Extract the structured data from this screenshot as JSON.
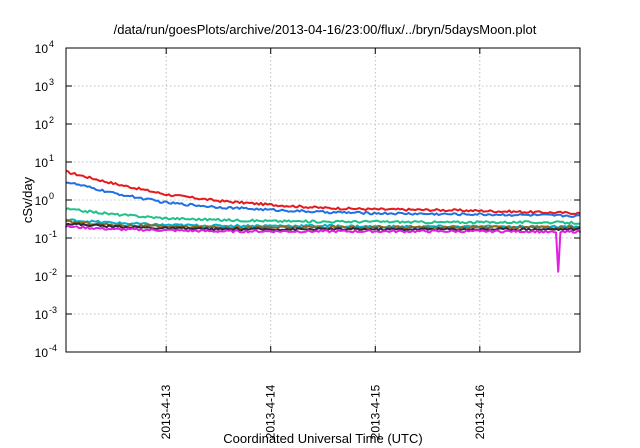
{
  "chart_data": {
    "type": "line",
    "title": "/data/run/goesPlots/archive/2013-04-16/23:00/flux/../bryn/5daysMoon.plot",
    "xlabel": "Coordinated Universal Time (UTC)",
    "ylabel": "cSv/day",
    "y_scale": "log",
    "ylim": [
      0.0001,
      10000
    ],
    "y_ticks": [
      {
        "value": 0.0001,
        "base": "10",
        "exp": "-4"
      },
      {
        "value": 0.001,
        "base": "10",
        "exp": "-3"
      },
      {
        "value": 0.01,
        "base": "10",
        "exp": "-2"
      },
      {
        "value": 0.1,
        "base": "10",
        "exp": "-1"
      },
      {
        "value": 1,
        "base": "10",
        "exp": "0"
      },
      {
        "value": 10,
        "base": "10",
        "exp": "1"
      },
      {
        "value": 100,
        "base": "10",
        "exp": "2"
      },
      {
        "value": 1000,
        "base": "10",
        "exp": "3"
      },
      {
        "value": 10000,
        "base": "10",
        "exp": "4"
      }
    ],
    "x_type": "date",
    "xlim": [
      "2013-04-12T01:00",
      "2013-04-16T23:00"
    ],
    "x_ticks": [
      "2013-4-13",
      "2013-4-14",
      "2013-4-15",
      "2013-4-16"
    ],
    "grid": true,
    "legend": "none",
    "series": [
      {
        "color": "#e41a1c",
        "x": [
          "2013-04-12T01:00",
          "2013-04-12T12:00",
          "2013-04-13T00:00",
          "2013-04-13T12:00",
          "2013-04-14T00:00",
          "2013-04-14T12:00",
          "2013-04-15T00:00",
          "2013-04-15T12:00",
          "2013-04-16T00:00",
          "2013-04-16T12:00",
          "2013-04-16T23:00"
        ],
        "values": [
          5.5,
          2.7,
          1.4,
          0.95,
          0.75,
          0.62,
          0.57,
          0.55,
          0.52,
          0.48,
          0.45
        ]
      },
      {
        "color": "#1f6fe5",
        "x": [
          "2013-04-12T01:00",
          "2013-04-12T12:00",
          "2013-04-13T00:00",
          "2013-04-13T12:00",
          "2013-04-14T00:00",
          "2013-04-14T12:00",
          "2013-04-15T00:00",
          "2013-04-15T12:00",
          "2013-04-16T00:00",
          "2013-04-16T12:00",
          "2013-04-16T23:00"
        ],
        "values": [
          3.0,
          1.5,
          0.85,
          0.65,
          0.55,
          0.48,
          0.45,
          0.43,
          0.42,
          0.4,
          0.38
        ]
      },
      {
        "color": "#1fc08a",
        "x": [
          "2013-04-12T01:00",
          "2013-04-12T12:00",
          "2013-04-13T00:00",
          "2013-04-13T12:00",
          "2013-04-14T00:00",
          "2013-04-14T12:00",
          "2013-04-15T00:00",
          "2013-04-15T12:00",
          "2013-04-16T00:00",
          "2013-04-16T12:00",
          "2013-04-16T23:00"
        ],
        "values": [
          0.58,
          0.42,
          0.33,
          0.3,
          0.28,
          0.27,
          0.27,
          0.26,
          0.26,
          0.26,
          0.25
        ]
      },
      {
        "color": "#00b0d0",
        "x": [
          "2013-04-12T01:00",
          "2013-04-12T12:00",
          "2013-04-13T00:00",
          "2013-04-13T12:00",
          "2013-04-14T00:00",
          "2013-04-14T12:00",
          "2013-04-15T00:00",
          "2013-04-15T12:00",
          "2013-04-16T00:00",
          "2013-04-16T12:00",
          "2013-04-16T23:00"
        ],
        "values": [
          0.3,
          0.25,
          0.22,
          0.21,
          0.21,
          0.21,
          0.2,
          0.2,
          0.2,
          0.2,
          0.2
        ]
      },
      {
        "color": "#8a6a1a",
        "x": [
          "2013-04-12T01:00",
          "2013-04-12T12:00",
          "2013-04-13T00:00",
          "2013-04-13T12:00",
          "2013-04-14T00:00",
          "2013-04-14T12:00",
          "2013-04-15T00:00",
          "2013-04-15T12:00",
          "2013-04-16T00:00",
          "2013-04-16T12:00",
          "2013-04-16T23:00"
        ],
        "values": [
          0.27,
          0.22,
          0.2,
          0.19,
          0.19,
          0.19,
          0.19,
          0.19,
          0.19,
          0.19,
          0.19
        ]
      },
      {
        "color": "#2a2a3a",
        "x": [
          "2013-04-12T01:00",
          "2013-04-12T12:00",
          "2013-04-13T00:00",
          "2013-04-13T12:00",
          "2013-04-14T00:00",
          "2013-04-14T12:00",
          "2013-04-15T00:00",
          "2013-04-15T12:00",
          "2013-04-16T00:00",
          "2013-04-16T12:00",
          "2013-04-16T23:00"
        ],
        "values": [
          0.24,
          0.2,
          0.18,
          0.17,
          0.17,
          0.17,
          0.17,
          0.17,
          0.17,
          0.17,
          0.17
        ]
      },
      {
        "color": "#e020e0",
        "x": [
          "2013-04-12T01:00",
          "2013-04-12T12:00",
          "2013-04-13T00:00",
          "2013-04-13T12:00",
          "2013-04-14T00:00",
          "2013-04-14T12:00",
          "2013-04-15T00:00",
          "2013-04-15T12:00",
          "2013-04-16T00:00",
          "2013-04-16T12:00",
          "2013-04-16T17:30",
          "2013-04-16T18:00",
          "2013-04-16T18:30",
          "2013-04-16T23:00"
        ],
        "values": [
          0.2,
          0.17,
          0.16,
          0.15,
          0.15,
          0.15,
          0.15,
          0.15,
          0.15,
          0.15,
          0.14,
          0.013,
          0.14,
          0.15
        ]
      }
    ]
  }
}
